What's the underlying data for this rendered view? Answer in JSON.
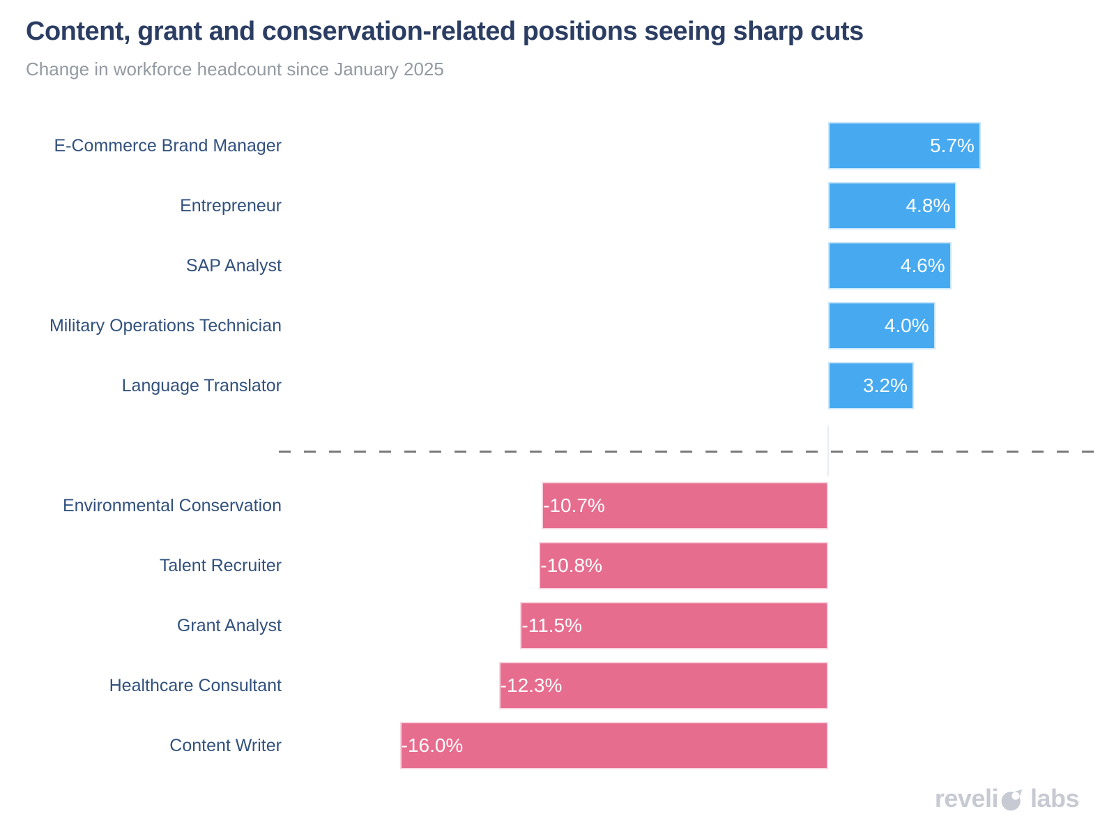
{
  "header": {
    "title": "Content, grant and conservation-related positions seeing sharp cuts",
    "subtitle": "Change in workforce headcount since January 2025"
  },
  "branding": {
    "full_name": "revelio labs",
    "logo_part1": "reveli",
    "logo_part2": "labs",
    "logo_color": "#c7cad2"
  },
  "chart_data": {
    "type": "bar",
    "orientation": "horizontal",
    "title": "Content, grant and conservation-related positions seeing sharp cuts",
    "subtitle": "Change in workforce headcount since January 2025",
    "categories": [
      "E-Commerce Brand Manager",
      "Entrepreneur",
      "SAP Analyst",
      "Military Operations Technician",
      "Language Translator",
      "Environmental Conservation",
      "Talent Recruiter",
      "Grant Analyst",
      "Healthcare Consultant",
      "Content Writer"
    ],
    "values": [
      5.7,
      4.8,
      4.6,
      4.0,
      3.2,
      -10.7,
      -10.8,
      -11.5,
      -12.3,
      -16.0
    ],
    "value_labels": [
      "5.7%",
      "4.8%",
      "4.6%",
      "4.0%",
      "3.2%",
      "-10.7%",
      "-10.8%",
      "-11.5%",
      "-12.3%",
      "-16.0%"
    ],
    "unit": "%",
    "positive_color": "#47aaf0",
    "negative_color": "#e76d8f",
    "bar_value_text_color": "#ffffff",
    "category_label_color": "#32517d",
    "separator_between_groups": "gray dashed horizontal line",
    "zero_baseline": 0,
    "xlim": [
      -16.0,
      5.7
    ],
    "grid": false,
    "legend": false
  }
}
